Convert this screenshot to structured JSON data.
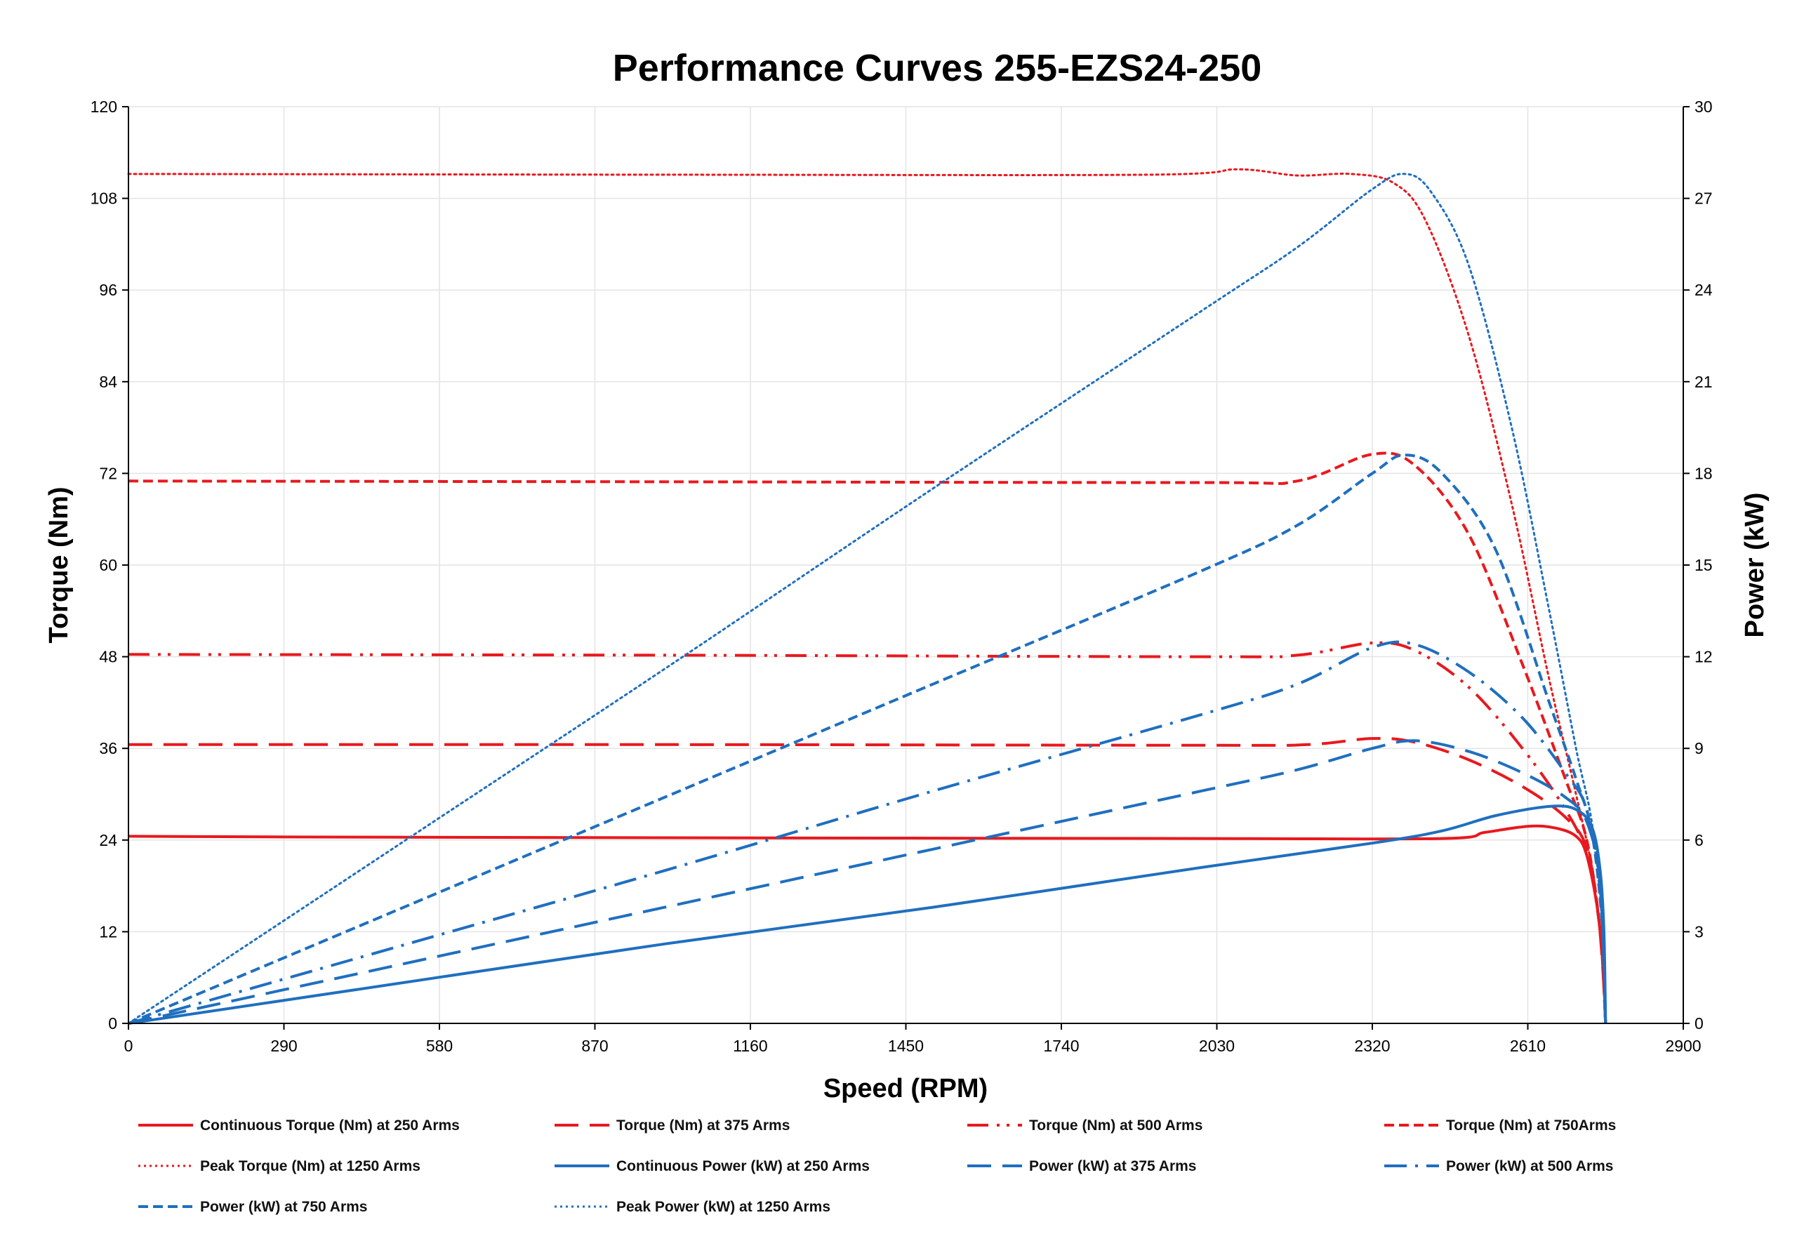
{
  "chart_data": {
    "type": "line",
    "title": "Performance Curves 255-EZS24-250",
    "xlabel": "Speed (RPM)",
    "ylabel": "Torque (Nm)",
    "y2label": "Power (kW)",
    "xlim": [
      0,
      2900
    ],
    "ylim": [
      0,
      120
    ],
    "y2lim": [
      0,
      30
    ],
    "xticks": [
      "0",
      "290",
      "580",
      "870",
      "1160",
      "1450",
      "1740",
      "2030",
      "2320",
      "2610",
      "2900"
    ],
    "yticks": [
      "0",
      "12",
      "24",
      "36",
      "48",
      "60",
      "72",
      "84",
      "96",
      "108",
      "120"
    ],
    "y2ticks": [
      "0",
      "3",
      "6",
      "9",
      "12",
      "15",
      "18",
      "21",
      "24",
      "27",
      "30"
    ],
    "grid": true,
    "legend_position": "bottom",
    "colors": {
      "torque": "#e8191e",
      "power": "#1f6fbf"
    },
    "series": [
      {
        "name": "Continuous Torque (Nm) at 250 Arms",
        "axis": "left",
        "color": "#e8191e",
        "dash": "solid",
        "points": [
          [
            0,
            24.5
          ],
          [
            290,
            24.4
          ],
          [
            1000,
            24.3
          ],
          [
            2000,
            24.2
          ],
          [
            2450,
            24.2
          ],
          [
            2530,
            25.0
          ],
          [
            2610,
            25.8
          ],
          [
            2660,
            25.6
          ],
          [
            2700,
            24.5
          ],
          [
            2720,
            22
          ],
          [
            2740,
            15
          ],
          [
            2750,
            8
          ],
          [
            2755,
            0
          ]
        ]
      },
      {
        "name": "Torque (Nm) at 375 Arms",
        "axis": "left",
        "color": "#e8191e",
        "dash": "long-dash",
        "points": [
          [
            0,
            36.5
          ],
          [
            1000,
            36.5
          ],
          [
            2000,
            36.4
          ],
          [
            2200,
            36.5
          ],
          [
            2320,
            37.3
          ],
          [
            2400,
            36.8
          ],
          [
            2500,
            34.5
          ],
          [
            2600,
            31
          ],
          [
            2680,
            27
          ],
          [
            2720,
            23
          ],
          [
            2740,
            15
          ],
          [
            2750,
            7
          ],
          [
            2755,
            0
          ]
        ]
      },
      {
        "name": "Torque (Nm) at 500 Arms",
        "axis": "left",
        "color": "#e8191e",
        "dash": "dash-dot-dot",
        "points": [
          [
            0,
            48.3
          ],
          [
            1000,
            48.2
          ],
          [
            2000,
            48.0
          ],
          [
            2180,
            48.2
          ],
          [
            2320,
            49.8
          ],
          [
            2400,
            48.8
          ],
          [
            2500,
            44
          ],
          [
            2600,
            36
          ],
          [
            2680,
            28
          ],
          [
            2720,
            22
          ],
          [
            2745,
            12
          ],
          [
            2755,
            0
          ]
        ]
      },
      {
        "name": "Torque (Nm) at 750Arms",
        "axis": "left",
        "color": "#e8191e",
        "dash": "short-dash",
        "points": [
          [
            0,
            71
          ],
          [
            1000,
            70.9
          ],
          [
            2000,
            70.8
          ],
          [
            2180,
            71
          ],
          [
            2320,
            74.5
          ],
          [
            2400,
            73
          ],
          [
            2500,
            64
          ],
          [
            2600,
            47
          ],
          [
            2680,
            32
          ],
          [
            2720,
            24
          ],
          [
            2745,
            12
          ],
          [
            2755,
            0
          ]
        ]
      },
      {
        "name": "Peak Torque (Nm) at 1250  Arms",
        "axis": "left",
        "color": "#e8191e",
        "dash": "dotted",
        "points": [
          [
            0,
            111.2
          ],
          [
            1000,
            111.1
          ],
          [
            1900,
            111.1
          ],
          [
            2070,
            111.8
          ],
          [
            2180,
            111.0
          ],
          [
            2280,
            111.2
          ],
          [
            2360,
            110
          ],
          [
            2420,
            105
          ],
          [
            2500,
            90
          ],
          [
            2580,
            68
          ],
          [
            2650,
            45
          ],
          [
            2700,
            30
          ],
          [
            2730,
            20
          ],
          [
            2750,
            8
          ],
          [
            2755,
            0
          ]
        ]
      },
      {
        "name": "Continuous Power (kW) at 250 Arms",
        "axis": "right",
        "color": "#1f6fbf",
        "dash": "solid",
        "points": [
          [
            0,
            0
          ],
          [
            500,
            1.3
          ],
          [
            1000,
            2.6
          ],
          [
            1500,
            3.8
          ],
          [
            2000,
            5.1
          ],
          [
            2320,
            5.9
          ],
          [
            2450,
            6.3
          ],
          [
            2550,
            6.8
          ],
          [
            2650,
            7.1
          ],
          [
            2700,
            7.0
          ],
          [
            2730,
            6.4
          ],
          [
            2745,
            5.0
          ],
          [
            2752,
            3.0
          ],
          [
            2755,
            0
          ]
        ]
      },
      {
        "name": "Power (kW) at 375 Arms",
        "axis": "right",
        "color": "#1f6fbf",
        "dash": "long-dash",
        "points": [
          [
            0,
            0
          ],
          [
            500,
            1.9
          ],
          [
            1000,
            3.8
          ],
          [
            1500,
            5.7
          ],
          [
            2000,
            7.6
          ],
          [
            2180,
            8.3
          ],
          [
            2320,
            9.0
          ],
          [
            2400,
            9.25
          ],
          [
            2500,
            8.9
          ],
          [
            2600,
            8.2
          ],
          [
            2680,
            7.4
          ],
          [
            2720,
            6.6
          ],
          [
            2745,
            4.5
          ],
          [
            2755,
            0
          ]
        ]
      },
      {
        "name": "Power (kW) at 500 Arms",
        "axis": "right",
        "color": "#1f6fbf",
        "dash": "dash-dot",
        "points": [
          [
            0,
            0
          ],
          [
            500,
            2.5
          ],
          [
            1000,
            5.0
          ],
          [
            1500,
            7.6
          ],
          [
            2000,
            10.1
          ],
          [
            2180,
            11.1
          ],
          [
            2320,
            12.3
          ],
          [
            2400,
            12.4
          ],
          [
            2500,
            11.5
          ],
          [
            2600,
            10
          ],
          [
            2680,
            8.2
          ],
          [
            2720,
            7.0
          ],
          [
            2745,
            4.5
          ],
          [
            2755,
            0
          ]
        ]
      },
      {
        "name": "Power (kW) at 750 Arms",
        "axis": "right",
        "color": "#1f6fbf",
        "dash": "short-dash",
        "points": [
          [
            0,
            0
          ],
          [
            500,
            3.7
          ],
          [
            1000,
            7.4
          ],
          [
            1500,
            11.1
          ],
          [
            2000,
            14.8
          ],
          [
            2180,
            16.3
          ],
          [
            2320,
            18.0
          ],
          [
            2380,
            18.6
          ],
          [
            2450,
            18.0
          ],
          [
            2550,
            15.5
          ],
          [
            2650,
            10.5
          ],
          [
            2700,
            8.0
          ],
          [
            2730,
            6.2
          ],
          [
            2750,
            3.0
          ],
          [
            2755,
            0
          ]
        ]
      },
      {
        "name": "Peak Power (kW) at 1250  Arms",
        "axis": "right",
        "color": "#1f6fbf",
        "dash": "dotted",
        "points": [
          [
            0,
            0
          ],
          [
            500,
            5.8
          ],
          [
            1000,
            11.6
          ],
          [
            1500,
            17.5
          ],
          [
            2000,
            23.3
          ],
          [
            2180,
            25.4
          ],
          [
            2320,
            27.3
          ],
          [
            2380,
            27.8
          ],
          [
            2430,
            27.2
          ],
          [
            2500,
            24.8
          ],
          [
            2580,
            19.5
          ],
          [
            2650,
            13.5
          ],
          [
            2700,
            9.0
          ],
          [
            2730,
            6.5
          ],
          [
            2750,
            3.0
          ],
          [
            2755,
            0
          ]
        ]
      }
    ]
  }
}
